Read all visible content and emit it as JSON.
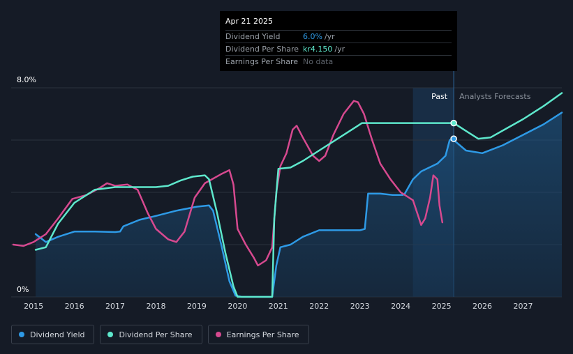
{
  "tooltip": {
    "date": "Apr 21 2025",
    "rows": [
      {
        "label": "Dividend Yield",
        "value": "6.0%",
        "unit": "/yr",
        "color": "#2e9ae6"
      },
      {
        "label": "Dividend Per Share",
        "value": "kr4.150",
        "unit": "/yr",
        "color": "#5ee8cc"
      },
      {
        "label": "Earnings Per Share",
        "value": "No data",
        "unit": "",
        "color": "#5d636b"
      }
    ]
  },
  "legend": [
    {
      "label": "Dividend Yield",
      "color": "#2e9ae6"
    },
    {
      "label": "Dividend Per Share",
      "color": "#5ee8cc"
    },
    {
      "label": "Earnings Per Share",
      "color": "#d6498f"
    }
  ],
  "chart_data": {
    "type": "line",
    "x_range": [
      2014.45,
      2027.95
    ],
    "ylim": [
      0,
      8.0
    ],
    "y_tick_labels": [
      "8.0%",
      "0%"
    ],
    "x_ticks": [
      2015,
      2016,
      2017,
      2018,
      2019,
      2020,
      2021,
      2022,
      2023,
      2024,
      2025,
      2026,
      2027
    ],
    "past_label": "Past",
    "forecast_label": "Analysts Forecasts",
    "forecast_band_start": 2024.3,
    "tooltip_x": 2025.3,
    "series": [
      {
        "name": "Dividend Yield",
        "color": "#2e9ae6",
        "fill": true,
        "points": [
          [
            2015.05,
            2.4
          ],
          [
            2015.3,
            2.1
          ],
          [
            2015.6,
            2.3
          ],
          [
            2016.0,
            2.5
          ],
          [
            2016.5,
            2.5
          ],
          [
            2017.0,
            2.48
          ],
          [
            2017.12,
            2.5
          ],
          [
            2017.2,
            2.7
          ],
          [
            2017.6,
            2.95
          ],
          [
            2018.0,
            3.1
          ],
          [
            2018.5,
            3.3
          ],
          [
            2019.0,
            3.45
          ],
          [
            2019.3,
            3.5
          ],
          [
            2019.4,
            3.3
          ],
          [
            2019.6,
            2.0
          ],
          [
            2019.8,
            0.6
          ],
          [
            2019.95,
            0.05
          ],
          [
            2020.1,
            0
          ],
          [
            2020.5,
            0
          ],
          [
            2020.85,
            0
          ],
          [
            2020.95,
            1.2
          ],
          [
            2021.05,
            1.9
          ],
          [
            2021.3,
            2.0
          ],
          [
            2021.6,
            2.3
          ],
          [
            2022.0,
            2.55
          ],
          [
            2022.5,
            2.55
          ],
          [
            2023.0,
            2.55
          ],
          [
            2023.12,
            2.6
          ],
          [
            2023.2,
            3.95
          ],
          [
            2023.5,
            3.95
          ],
          [
            2023.8,
            3.9
          ],
          [
            2024.05,
            3.9
          ],
          [
            2024.1,
            3.95
          ],
          [
            2024.3,
            4.5
          ],
          [
            2024.5,
            4.8
          ],
          [
            2024.9,
            5.1
          ],
          [
            2025.1,
            5.4
          ],
          [
            2025.2,
            6.0
          ],
          [
            2025.3,
            6.05
          ],
          [
            2025.3,
            6.0
          ],
          [
            2025.6,
            5.6
          ],
          [
            2026.0,
            5.5
          ],
          [
            2026.5,
            5.8
          ],
          [
            2027.0,
            6.2
          ],
          [
            2027.5,
            6.6
          ],
          [
            2027.95,
            7.05
          ]
        ]
      },
      {
        "name": "Dividend Per Share",
        "color": "#5ee8cc",
        "fill": false,
        "points": [
          [
            2015.05,
            1.8
          ],
          [
            2015.3,
            1.9
          ],
          [
            2015.6,
            2.8
          ],
          [
            2016.0,
            3.6
          ],
          [
            2016.5,
            4.1
          ],
          [
            2017.0,
            4.2
          ],
          [
            2017.5,
            4.2
          ],
          [
            2018.0,
            4.2
          ],
          [
            2018.3,
            4.25
          ],
          [
            2018.6,
            4.45
          ],
          [
            2018.9,
            4.6
          ],
          [
            2019.2,
            4.65
          ],
          [
            2019.3,
            4.5
          ],
          [
            2019.5,
            3.2
          ],
          [
            2019.7,
            1.7
          ],
          [
            2019.9,
            0.4
          ],
          [
            2020.0,
            0
          ],
          [
            2020.5,
            0
          ],
          [
            2020.85,
            0
          ],
          [
            2020.9,
            3.0
          ],
          [
            2021.0,
            4.9
          ],
          [
            2021.3,
            4.95
          ],
          [
            2021.6,
            5.2
          ],
          [
            2022.0,
            5.6
          ],
          [
            2022.5,
            6.1
          ],
          [
            2022.9,
            6.5
          ],
          [
            2023.05,
            6.65
          ],
          [
            2023.5,
            6.65
          ],
          [
            2024.0,
            6.65
          ],
          [
            2024.5,
            6.65
          ],
          [
            2025.0,
            6.65
          ],
          [
            2025.3,
            6.65
          ],
          [
            2025.6,
            6.35
          ],
          [
            2025.9,
            6.05
          ],
          [
            2026.2,
            6.1
          ],
          [
            2026.6,
            6.45
          ],
          [
            2027.0,
            6.8
          ],
          [
            2027.5,
            7.3
          ],
          [
            2027.95,
            7.8
          ]
        ]
      },
      {
        "name": "Earnings Per Share",
        "color": "#d6498f",
        "fill": false,
        "points": [
          [
            2014.5,
            2.0
          ],
          [
            2014.75,
            1.95
          ],
          [
            2015.0,
            2.1
          ],
          [
            2015.3,
            2.4
          ],
          [
            2015.6,
            3.0
          ],
          [
            2015.95,
            3.75
          ],
          [
            2016.3,
            3.9
          ],
          [
            2016.6,
            4.15
          ],
          [
            2016.8,
            4.35
          ],
          [
            2017.0,
            4.25
          ],
          [
            2017.3,
            4.3
          ],
          [
            2017.55,
            4.1
          ],
          [
            2017.8,
            3.2
          ],
          [
            2018.0,
            2.6
          ],
          [
            2018.3,
            2.2
          ],
          [
            2018.5,
            2.1
          ],
          [
            2018.7,
            2.5
          ],
          [
            2018.95,
            3.8
          ],
          [
            2019.2,
            4.35
          ],
          [
            2019.6,
            4.7
          ],
          [
            2019.8,
            4.85
          ],
          [
            2019.9,
            4.3
          ],
          [
            2020.0,
            2.6
          ],
          [
            2020.2,
            2.0
          ],
          [
            2020.4,
            1.5
          ],
          [
            2020.5,
            1.2
          ],
          [
            2020.7,
            1.4
          ],
          [
            2020.85,
            1.9
          ],
          [
            2020.95,
            4.0
          ],
          [
            2021.05,
            5.0
          ],
          [
            2021.2,
            5.5
          ],
          [
            2021.35,
            6.4
          ],
          [
            2021.45,
            6.55
          ],
          [
            2021.6,
            6.1
          ],
          [
            2021.85,
            5.4
          ],
          [
            2022.0,
            5.2
          ],
          [
            2022.15,
            5.4
          ],
          [
            2022.35,
            6.2
          ],
          [
            2022.6,
            7.0
          ],
          [
            2022.85,
            7.5
          ],
          [
            2022.95,
            7.45
          ],
          [
            2023.1,
            7.0
          ],
          [
            2023.3,
            6.0
          ],
          [
            2023.5,
            5.1
          ],
          [
            2023.75,
            4.5
          ],
          [
            2024.0,
            4.0
          ],
          [
            2024.2,
            3.8
          ],
          [
            2024.3,
            3.7
          ],
          [
            2024.45,
            3.0
          ],
          [
            2024.5,
            2.75
          ],
          [
            2024.6,
            3.0
          ],
          [
            2024.72,
            3.8
          ],
          [
            2024.8,
            4.65
          ],
          [
            2024.9,
            4.5
          ],
          [
            2024.95,
            3.5
          ],
          [
            2025.02,
            2.85
          ]
        ]
      }
    ]
  }
}
